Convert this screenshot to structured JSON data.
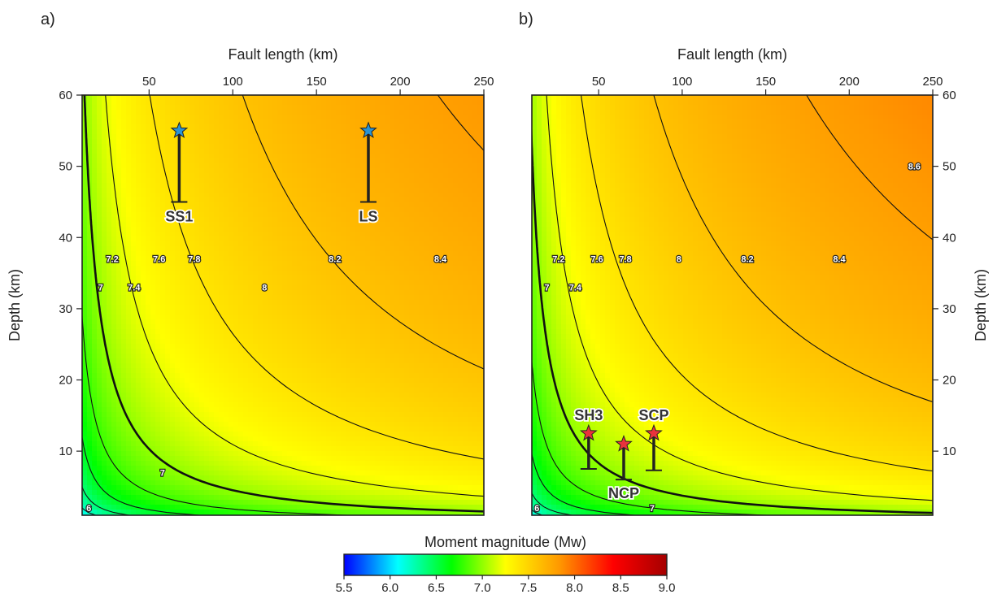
{
  "figure": {
    "colorbar": {
      "label": "Moment magnitude (Mw)",
      "range": [
        5.5,
        9.0
      ],
      "ticks": [
        "5.5",
        "6.0",
        "6.5",
        "7.0",
        "7.5",
        "8.0",
        "8.5",
        "9.0"
      ],
      "colors": [
        "#0000ff",
        "#00ffff",
        "#00ff00",
        "#ffff00",
        "#ff9900",
        "#ff0000",
        "#a50000"
      ]
    }
  },
  "chart_data": [
    {
      "type": "heatmap",
      "panel_label": "a)",
      "xlabel": "Fault length (km)",
      "ylabel": "Depth (km)",
      "xlim": [
        10,
        250
      ],
      "ylim": [
        1,
        60
      ],
      "x_ticks": [
        "50",
        "100",
        "150",
        "200",
        "250"
      ],
      "y_ticks": [
        "10",
        "20",
        "30",
        "40",
        "50",
        "60"
      ],
      "y_axis_side": "left",
      "grid": false,
      "contour_levels": [
        6.2,
        6.4,
        6.6,
        6.8,
        7,
        7.2,
        7.4,
        7.6,
        7.8,
        8,
        8.2,
        8.4
      ],
      "contour_labels": [
        {
          "text": "6",
          "x": 14,
          "y": 2
        },
        {
          "text": "7",
          "x": 58,
          "y": 7
        },
        {
          "text": "7",
          "x": 21,
          "y": 33
        },
        {
          "text": "7.2",
          "x": 28,
          "y": 37
        },
        {
          "text": "7.4",
          "x": 41,
          "y": 33
        },
        {
          "text": "7.6",
          "x": 56,
          "y": 37
        },
        {
          "text": "7.8",
          "x": 77,
          "y": 37
        },
        {
          "text": "8",
          "x": 119,
          "y": 33
        },
        {
          "text": "8.2",
          "x": 161,
          "y": 37
        },
        {
          "text": "8.4",
          "x": 224,
          "y": 37
        }
      ],
      "markers": [
        {
          "name": "SS1",
          "x": 68,
          "depth": 55,
          "range": [
            45,
            55
          ],
          "color": "#2a93d5"
        },
        {
          "name": "LS",
          "x": 181,
          "depth": 55,
          "range": [
            45,
            55
          ],
          "color": "#2a93d5"
        }
      ]
    },
    {
      "type": "heatmap",
      "panel_label": "b)",
      "xlabel": "Fault length (km)",
      "ylabel": "Depth (km)",
      "xlim": [
        10,
        250
      ],
      "ylim": [
        1,
        60
      ],
      "x_ticks": [
        "50",
        "100",
        "150",
        "200",
        "250"
      ],
      "y_ticks": [
        "10",
        "20",
        "30",
        "40",
        "50",
        "60"
      ],
      "y_axis_side": "right",
      "grid": false,
      "contour_levels": [
        6.2,
        6.4,
        6.6,
        6.8,
        7,
        7.2,
        7.4,
        7.6,
        7.8,
        8,
        8.2,
        8.4,
        8.6
      ],
      "contour_labels": [
        {
          "text": "6",
          "x": 13,
          "y": 2
        },
        {
          "text": "7",
          "x": 82,
          "y": 2
        },
        {
          "text": "7",
          "x": 19,
          "y": 33
        },
        {
          "text": "7.2",
          "x": 26,
          "y": 37
        },
        {
          "text": "7.4",
          "x": 36,
          "y": 33
        },
        {
          "text": "7.6",
          "x": 49,
          "y": 37
        },
        {
          "text": "7.8",
          "x": 66,
          "y": 37
        },
        {
          "text": "8",
          "x": 98,
          "y": 37
        },
        {
          "text": "8.2",
          "x": 139,
          "y": 37
        },
        {
          "text": "8.4",
          "x": 194,
          "y": 37
        },
        {
          "text": "8.6",
          "x": 239,
          "y": 50
        }
      ],
      "markers": [
        {
          "name": "SH3",
          "x": 44,
          "depth": 12.5,
          "range": [
            7.5,
            12.5
          ],
          "color": "#e8323c",
          "label_pos": "above"
        },
        {
          "name": "NCP",
          "x": 65,
          "depth": 11,
          "range": [
            6,
            11
          ],
          "color": "#e8323c",
          "label_pos": "below"
        },
        {
          "name": "SCP",
          "x": 83,
          "depth": 12.5,
          "range": [
            7.3,
            12.5
          ],
          "color": "#e8323c",
          "label_pos": "above"
        }
      ]
    }
  ]
}
